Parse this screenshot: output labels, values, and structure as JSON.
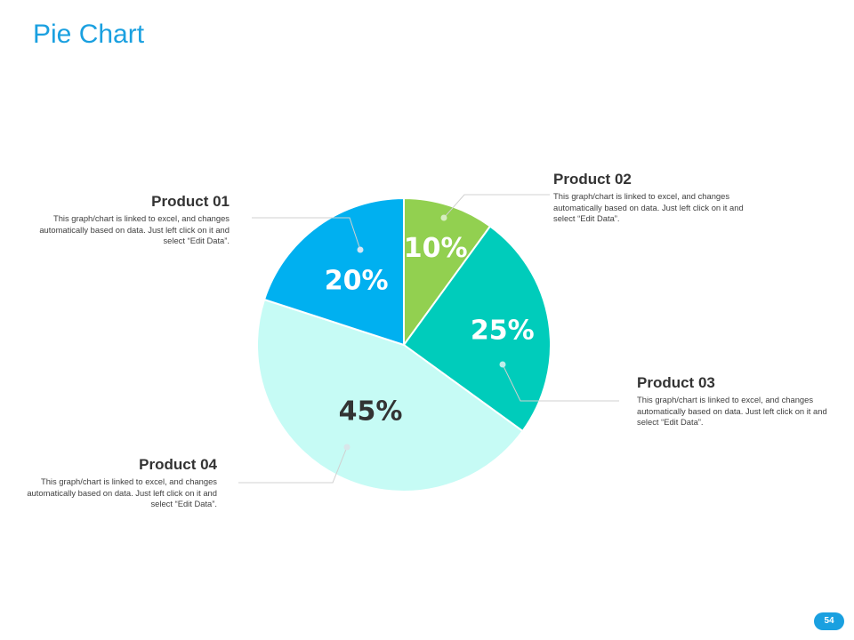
{
  "title": "Pie Chart",
  "page_number": "54",
  "colors": {
    "accent": "#1aa0e0",
    "slices": [
      "#92d050",
      "#00ccbb",
      "#c6fbf5",
      "#00b0f0"
    ],
    "label_dark": "#333333",
    "label_light": "#ffffff"
  },
  "chart_data": {
    "type": "pie",
    "categories": [
      "Product 02",
      "Product 03",
      "Product 04",
      "Product 01"
    ],
    "values": [
      10,
      25,
      45,
      20
    ],
    "labels": [
      "10%",
      "25%",
      "45%",
      "20%"
    ],
    "start_angle": "12 o'clock",
    "direction": "clockwise"
  },
  "callouts": [
    {
      "title": "Product 01",
      "text": "This graph/chart is linked to excel, and changes automatically based on data. Just left click on it and select “Edit Data”."
    },
    {
      "title": "Product 02",
      "text": "This graph/chart is linked to excel, and changes automatically based on data. Just left click on it and select “Edit Data”."
    },
    {
      "title": "Product 03",
      "text": "This graph/chart is linked to excel, and changes automatically based on data. Just left click on it and select “Edit Data”."
    },
    {
      "title": "Product 04",
      "text": "This graph/chart is linked to excel, and changes automatically based on data. Just left click on it and select “Edit Data”."
    }
  ]
}
